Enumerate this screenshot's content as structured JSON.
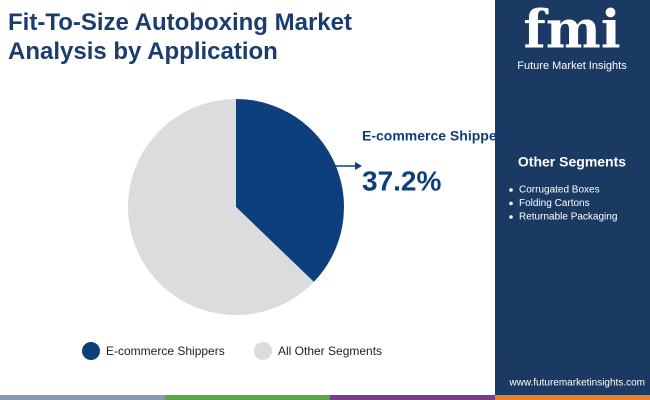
{
  "chart_data": {
    "type": "pie",
    "title": "Fit-To-Size Autoboxing Market Analysis by Application",
    "categories": [
      "E-commerce Shippers",
      "All Other Segments"
    ],
    "values": [
      37.2,
      62.8
    ],
    "value_labels": [
      "37.2%",
      null
    ],
    "colors": [
      "#0d3f7d",
      "#dcdcdc"
    ],
    "legend": "bottom"
  },
  "brand": {
    "logo": "fmi",
    "name": "Future Market Insights"
  },
  "sidebar": {
    "heading": "Other Segments",
    "items": [
      "Corrugated Boxes",
      "Folding Cartons",
      "Returnable Packaging"
    ]
  },
  "footer": {
    "url": "www.futuremarketinsights.com"
  }
}
